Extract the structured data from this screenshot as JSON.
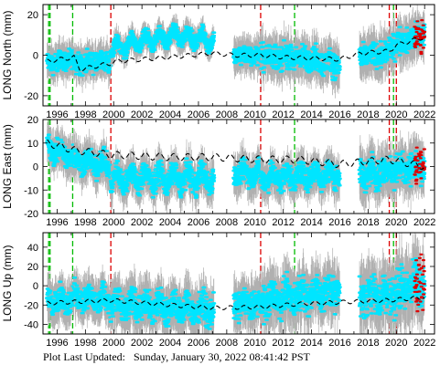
{
  "footer": {
    "label": "Plot Last Updated:",
    "timestamp": "Sunday, January 30, 2022 08:41:42 PST"
  },
  "colors": {
    "data": "#00e5ff",
    "error_bar": "#b0b0b0",
    "model": "#000000",
    "red_vline": "#dd0000",
    "green_vline": "#00bb00",
    "recent": "#dd0000"
  },
  "chart_data": [
    {
      "type": "scatter",
      "ylabel": "LONG North (mm)",
      "xlim": [
        1995.0,
        2022.7
      ],
      "ylim": [
        -25,
        25
      ],
      "yticks": [
        -20,
        0,
        20
      ],
      "xticks": [
        1996,
        1998,
        2000,
        2002,
        2004,
        2006,
        2008,
        2010,
        2012,
        2014,
        2016,
        2018,
        2020,
        2022
      ],
      "red_lines": [
        1999.8,
        2010.4,
        2019.5,
        2020.0
      ],
      "green_lines": [
        1995.4,
        1995.5,
        1997.1,
        2012.8,
        2019.8
      ],
      "segments": [
        {
          "start": 1995.3,
          "end": 1997.2,
          "points": [
            [
              1995.3,
              -4
            ],
            [
              1997.2,
              -2
            ]
          ],
          "spread": 4,
          "amp": 1
        },
        {
          "start": 1997.2,
          "end": 1999.8,
          "points": [
            [
              1997.2,
              -4
            ],
            [
              1999.8,
              -3
            ]
          ],
          "spread": 4,
          "amp": 1
        },
        {
          "start": 1999.8,
          "end": 2007.1,
          "points": [
            [
              1999.8,
              3
            ],
            [
              2004.5,
              10
            ],
            [
              2007.1,
              7
            ]
          ],
          "spread": 3,
          "amp": 3
        },
        {
          "start": 2008.5,
          "end": 2010.4,
          "points": [
            [
              2008.5,
              0
            ],
            [
              2010.4,
              0
            ]
          ],
          "spread": 4,
          "amp": 1
        },
        {
          "start": 2010.4,
          "end": 2016.0,
          "points": [
            [
              2010.4,
              0
            ],
            [
              2014.0,
              -2
            ],
            [
              2016.0,
              -5
            ]
          ],
          "spread": 5,
          "amp": 1
        },
        {
          "start": 2017.4,
          "end": 2019.5,
          "points": [
            [
              2017.4,
              -1
            ],
            [
              2019.5,
              1
            ]
          ],
          "spread": 5,
          "amp": 1
        },
        {
          "start": 2019.5,
          "end": 2022.0,
          "points": [
            [
              2019.5,
              4
            ],
            [
              2022.0,
              11
            ]
          ],
          "spread": 5,
          "amp": 1
        }
      ],
      "model": [
        [
          1995.3,
          -3
        ],
        [
          1997.2,
          -1
        ],
        [
          1997.6,
          -7
        ],
        [
          1999.8,
          -4
        ],
        [
          2000.2,
          -3
        ],
        [
          2004.0,
          -1
        ],
        [
          2007.0,
          1
        ],
        [
          2008.5,
          0
        ],
        [
          2010.4,
          0
        ],
        [
          2012.0,
          -1
        ],
        [
          2016.0,
          -2
        ],
        [
          2017.5,
          1
        ],
        [
          2019.5,
          2
        ],
        [
          2020.0,
          5
        ],
        [
          2022.0,
          9
        ]
      ],
      "model_amp": 1
    },
    {
      "type": "scatter",
      "ylabel": "LONG East (mm)",
      "xlim": [
        1995.0,
        2022.7
      ],
      "ylim": [
        -20,
        20
      ],
      "yticks": [
        -20,
        -10,
        0,
        10,
        20
      ],
      "xticks": [
        1996,
        1998,
        2000,
        2002,
        2004,
        2006,
        2008,
        2010,
        2012,
        2014,
        2016,
        2018,
        2020,
        2022
      ],
      "red_lines": [
        1999.8,
        2010.4,
        2019.5,
        2020.0
      ],
      "green_lines": [
        1995.4,
        1995.5,
        1997.1,
        2012.8,
        2019.8
      ],
      "segments": [
        {
          "start": 1995.3,
          "end": 1997.2,
          "points": [
            [
              1995.3,
              8
            ],
            [
              1997.2,
              4
            ]
          ],
          "spread": 4,
          "amp": 2
        },
        {
          "start": 1997.2,
          "end": 1999.8,
          "points": [
            [
              1997.2,
              3
            ],
            [
              1999.8,
              0
            ]
          ],
          "spread": 4,
          "amp": 2
        },
        {
          "start": 1999.8,
          "end": 2007.1,
          "points": [
            [
              1999.8,
              -5
            ],
            [
              2007.1,
              -5
            ]
          ],
          "spread": 4,
          "amp": 3
        },
        {
          "start": 2008.5,
          "end": 2010.4,
          "points": [
            [
              2008.5,
              -3
            ],
            [
              2010.4,
              -3
            ]
          ],
          "spread": 4,
          "amp": 2
        },
        {
          "start": 2010.4,
          "end": 2016.0,
          "points": [
            [
              2010.4,
              -5
            ],
            [
              2016.0,
              -3
            ]
          ],
          "spread": 4,
          "amp": 2
        },
        {
          "start": 2017.4,
          "end": 2019.5,
          "points": [
            [
              2017.4,
              -3
            ],
            [
              2019.5,
              -2
            ]
          ],
          "spread": 5,
          "amp": 2
        },
        {
          "start": 2019.5,
          "end": 2022.0,
          "points": [
            [
              2019.5,
              -2
            ],
            [
              2022.0,
              0
            ]
          ],
          "spread": 5,
          "amp": 2
        }
      ],
      "model": [
        [
          1995.3,
          10
        ],
        [
          1997.2,
          7
        ],
        [
          1999.8,
          5
        ],
        [
          2004.0,
          4
        ],
        [
          2007.0,
          4
        ],
        [
          2010.4,
          3
        ],
        [
          2013.0,
          3
        ],
        [
          2016.0,
          1
        ],
        [
          2019.5,
          3
        ],
        [
          2022.0,
          0
        ]
      ],
      "model_amp": 1.5
    },
    {
      "type": "scatter",
      "ylabel": "LONG Up (mm)",
      "xlim": [
        1995.0,
        2022.7
      ],
      "ylim": [
        -50,
        55
      ],
      "yticks": [
        -40,
        -20,
        0,
        20,
        40
      ],
      "xticks": [
        1996,
        1998,
        2000,
        2002,
        2004,
        2006,
        2008,
        2010,
        2012,
        2014,
        2016,
        2018,
        2020,
        2022
      ],
      "red_lines": [
        1999.8,
        2010.4,
        2019.5,
        2020.0
      ],
      "green_lines": [
        1995.4,
        1995.5,
        1997.1,
        2012.8,
        2019.8
      ],
      "segments": [
        {
          "start": 1995.3,
          "end": 1997.2,
          "points": [
            [
              1995.3,
              -15
            ],
            [
              1997.2,
              -15
            ]
          ],
          "spread": 10,
          "amp": 5
        },
        {
          "start": 1997.2,
          "end": 1999.8,
          "points": [
            [
              1997.2,
              -12
            ],
            [
              1999.8,
              -15
            ]
          ],
          "spread": 10,
          "amp": 5
        },
        {
          "start": 1999.8,
          "end": 2007.1,
          "points": [
            [
              1999.8,
              -18
            ],
            [
              2007.1,
              -25
            ]
          ],
          "spread": 12,
          "amp": 6
        },
        {
          "start": 2008.5,
          "end": 2010.4,
          "points": [
            [
              2008.5,
              -20
            ],
            [
              2010.4,
              -20
            ]
          ],
          "spread": 12,
          "amp": 4
        },
        {
          "start": 2010.4,
          "end": 2016.0,
          "points": [
            [
              2010.4,
              -15
            ],
            [
              2016.0,
              -5
            ]
          ],
          "spread": 14,
          "amp": 5
        },
        {
          "start": 2017.4,
          "end": 2019.5,
          "points": [
            [
              2017.4,
              -10
            ],
            [
              2019.5,
              -10
            ]
          ],
          "spread": 16,
          "amp": 5
        },
        {
          "start": 2019.5,
          "end": 2022.0,
          "points": [
            [
              2019.5,
              -10
            ],
            [
              2022.0,
              5
            ]
          ],
          "spread": 18,
          "amp": 5
        }
      ],
      "model": [
        [
          1995.3,
          -18
        ],
        [
          1999.8,
          -15
        ],
        [
          2004.0,
          -20
        ],
        [
          2007.0,
          -23
        ],
        [
          2010.4,
          -22
        ],
        [
          2013.0,
          -19
        ],
        [
          2016.0,
          -17
        ],
        [
          2019.5,
          -15
        ],
        [
          2022.0,
          -12
        ]
      ],
      "model_amp": 2
    }
  ]
}
